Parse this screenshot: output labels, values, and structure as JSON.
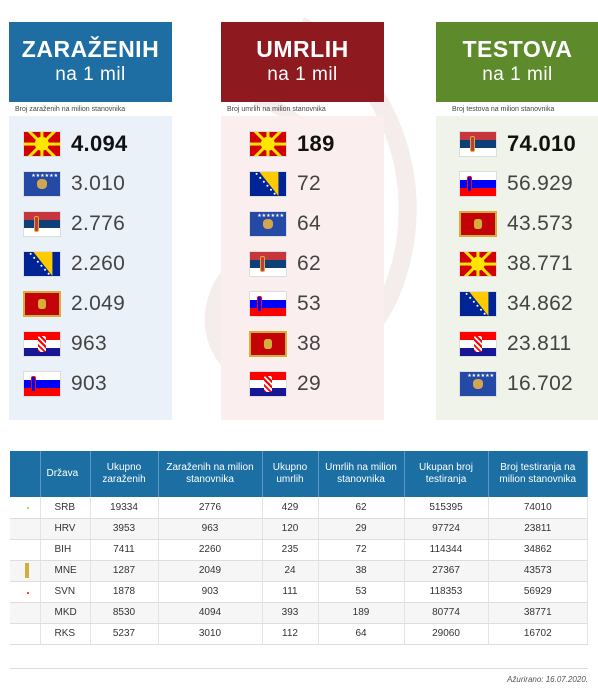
{
  "panels": [
    {
      "title": "ZARAŽENIH",
      "subtitle": "na 1 mil",
      "caption": "Broj zaraženih na milion stanovnika",
      "items": [
        {
          "flag": "MKD",
          "value": "4.094"
        },
        {
          "flag": "RKS",
          "value": "3.010"
        },
        {
          "flag": "SRB",
          "value": "2.776"
        },
        {
          "flag": "BIH",
          "value": "2.260"
        },
        {
          "flag": "MNE",
          "value": "2.049"
        },
        {
          "flag": "HRV",
          "value": "963"
        },
        {
          "flag": "SVN",
          "value": "903"
        }
      ]
    },
    {
      "title": "UMRLIH",
      "subtitle": "na 1 mil",
      "caption": "Broj umrlih na milion stanovnika",
      "items": [
        {
          "flag": "MKD",
          "value": "189"
        },
        {
          "flag": "BIH",
          "value": "72"
        },
        {
          "flag": "RKS",
          "value": "64"
        },
        {
          "flag": "SRB",
          "value": "62"
        },
        {
          "flag": "SVN",
          "value": "53"
        },
        {
          "flag": "MNE",
          "value": "38"
        },
        {
          "flag": "HRV",
          "value": "29"
        }
      ]
    },
    {
      "title": "TESTOVA",
      "subtitle": "na 1 mil",
      "caption": "Broj testova na milion stanovnika",
      "items": [
        {
          "flag": "SRB",
          "value": "74.010"
        },
        {
          "flag": "SVN",
          "value": "56.929"
        },
        {
          "flag": "MNE",
          "value": "43.573"
        },
        {
          "flag": "MKD",
          "value": "38.771"
        },
        {
          "flag": "BIH",
          "value": "34.862"
        },
        {
          "flag": "HRV",
          "value": "23.811"
        },
        {
          "flag": "RKS",
          "value": "16.702"
        }
      ]
    }
  ],
  "table": {
    "headers": [
      "Država",
      "Ukupno zaraženih",
      "Zaraženih na milion stanovnika",
      "Ukupno umrlih",
      "Umrlih na milion stanovnika",
      "Ukupan broj testiranja",
      "Broj testiranja na milion stanovnika"
    ],
    "rows": [
      {
        "flag": "SRB",
        "code": "SRB",
        "cells": [
          "19334",
          "2776",
          "429",
          "62",
          "515395",
          "74010"
        ]
      },
      {
        "flag": "HRV",
        "code": "HRV",
        "cells": [
          "3953",
          "963",
          "120",
          "29",
          "97724",
          "23811"
        ]
      },
      {
        "flag": "BIH",
        "code": "BIH",
        "cells": [
          "7411",
          "2260",
          "235",
          "72",
          "114344",
          "34862"
        ]
      },
      {
        "flag": "MNE",
        "code": "MNE",
        "cells": [
          "1287",
          "2049",
          "24",
          "38",
          "27367",
          "43573"
        ]
      },
      {
        "flag": "SVN",
        "code": "SVN",
        "cells": [
          "1878",
          "903",
          "111",
          "53",
          "118353",
          "56929"
        ]
      },
      {
        "flag": "MKD",
        "code": "MKD",
        "cells": [
          "8530",
          "4094",
          "393",
          "189",
          "80774",
          "38771"
        ]
      },
      {
        "flag": "RKS",
        "code": "RKS",
        "cells": [
          "5237",
          "3010",
          "112",
          "64",
          "29060",
          "16702"
        ]
      }
    ]
  },
  "updated": "Ažurirano: 16.07.2020.",
  "colors": {
    "blue": "#1e6ea4",
    "red": "#8e1a1f",
    "green": "#5d8a2a",
    "table_header": "#1b6fa3"
  }
}
